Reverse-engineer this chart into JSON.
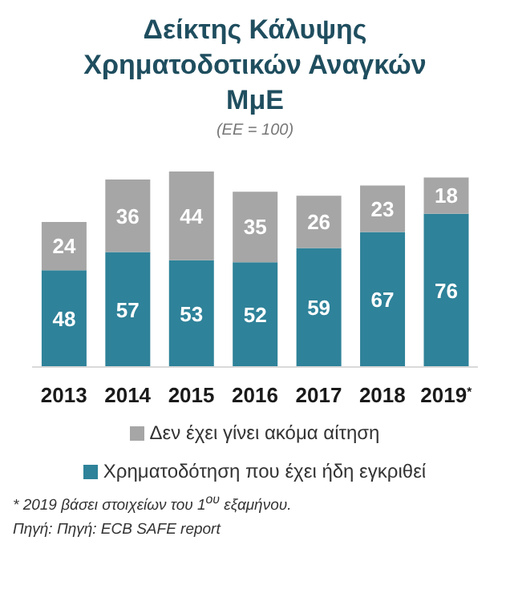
{
  "chart_data": {
    "type": "bar",
    "title": "Δείκτης Κάλυψης Χρηματοδοτικών Αναγκών ΜμΕ",
    "subtitle": "(ΕΕ = 100)",
    "categories": [
      "2013",
      "2014",
      "2015",
      "2016",
      "2017",
      "2018",
      "2019$^{*}$"
    ],
    "stacked": true,
    "data_labels": true,
    "legend": "bottom",
    "grid": false,
    "series": [
      {
        "name": "Χρηματοδότηση που έχει ήδη εγκριθεί",
        "color": "#2e8299",
        "values": [
          48,
          57,
          53,
          52,
          59,
          67,
          76
        ]
      },
      {
        "name": "Δεν έχει γίνει ακόμα αίτηση",
        "color": "#a6a6a6",
        "values": [
          24,
          36,
          44,
          35,
          26,
          23,
          18
        ]
      }
    ],
    "annotations": [
      "* 2019 βάσει στοιχείων του 1$^{ου}$ εξαμήνου.",
      "Πηγή: Πηγή: ECB SAFE report"
    ]
  }
}
